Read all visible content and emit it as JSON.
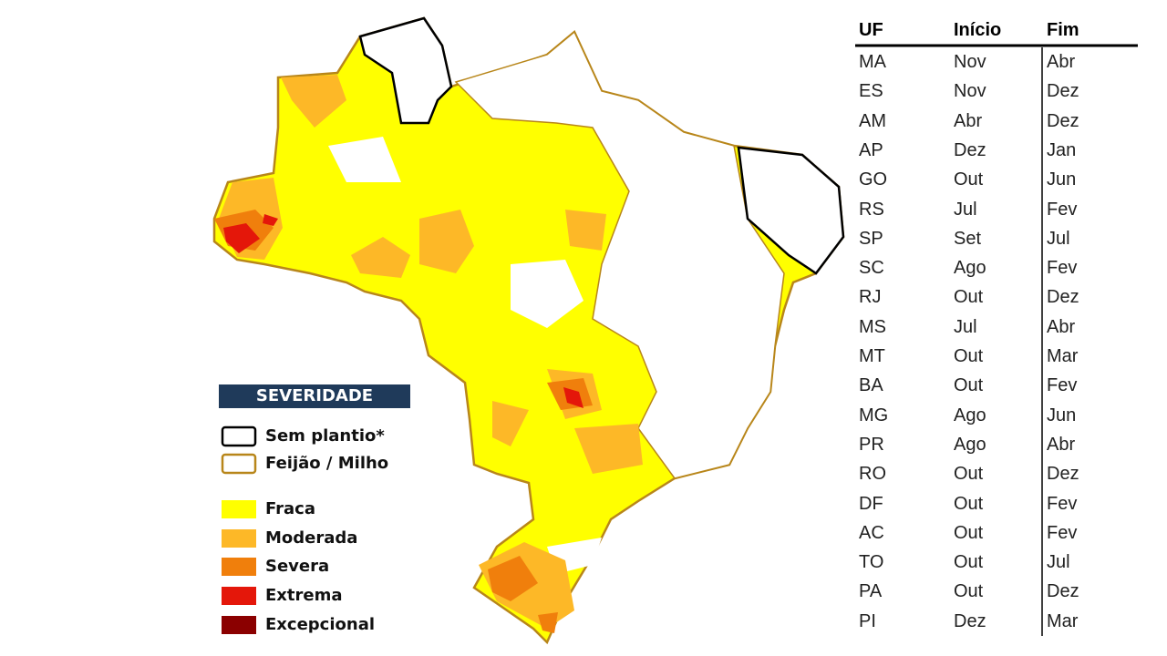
{
  "legend": {
    "title": "SEVERIDADE",
    "items": [
      "Sem plantio*",
      "Feijão / Milho",
      "Fraca",
      "Moderada",
      "Severa",
      "Extrema",
      "Excepcional"
    ]
  },
  "table": {
    "header": [
      "UF",
      "Início",
      "Fim"
    ],
    "rows": [
      [
        "MA",
        "Nov",
        "Abr"
      ],
      [
        "ES",
        "Nov",
        "Dez"
      ],
      [
        "AM",
        "Abr",
        "Dez"
      ],
      [
        "AP",
        "Dez",
        "Jan"
      ],
      [
        "GO",
        "Out",
        "Jun"
      ],
      [
        "RS",
        "Jul",
        "Fev"
      ],
      [
        "SP",
        "Set",
        "Jul"
      ],
      [
        "SC",
        "Ago",
        "Fev"
      ],
      [
        "RJ",
        "Out",
        "Dez"
      ],
      [
        "MS",
        "Jul",
        "Abr"
      ],
      [
        "MT",
        "Out",
        "Mar"
      ],
      [
        "BA",
        "Out",
        "Fev"
      ],
      [
        "MG",
        "Ago",
        "Jun"
      ],
      [
        "PR",
        "Ago",
        "Abr"
      ],
      [
        "RO",
        "Out",
        "Dez"
      ],
      [
        "DF",
        "Out",
        "Fev"
      ],
      [
        "AC",
        "Out",
        "Fev"
      ],
      [
        "TO",
        "Out",
        "Jul"
      ],
      [
        "PA",
        "Out",
        "Dez"
      ],
      [
        "PI",
        "Dez",
        "Mar"
      ]
    ]
  }
}
